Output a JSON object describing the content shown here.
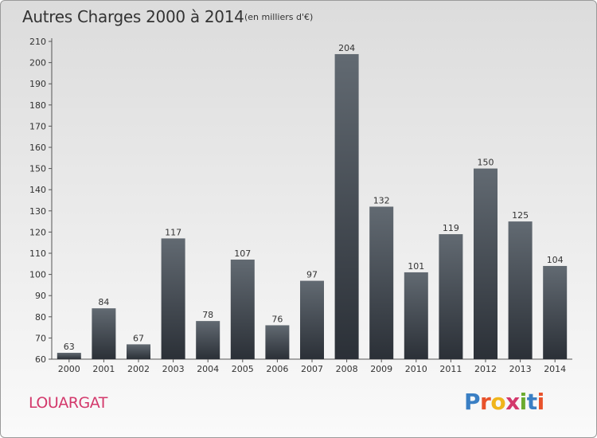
{
  "header": {
    "title": "Autres Charges 2000 à 2014",
    "unit": "(en milliers d'€)"
  },
  "footer": {
    "location": "LOUARGAT",
    "logo_text": "Proxiti"
  },
  "colors": {
    "bar_top": "#626a72",
    "bar_bottom": "#2b3037",
    "location": "#d3386b",
    "logo_letters": [
      "#3a7fc4",
      "#e8522b",
      "#f0b51c",
      "#d3386b",
      "#6cab2f",
      "#3a7fc4",
      "#e8522b"
    ]
  },
  "chart_data": {
    "type": "bar",
    "title": "Autres Charges 2000 à 2014",
    "subtitle": "(en milliers d'€)",
    "categories": [
      "2000",
      "2001",
      "2002",
      "2003",
      "2004",
      "2005",
      "2006",
      "2007",
      "2008",
      "2009",
      "2010",
      "2011",
      "2012",
      "2013",
      "2014"
    ],
    "values": [
      63,
      84,
      67,
      117,
      78,
      107,
      76,
      97,
      204,
      132,
      101,
      119,
      150,
      125,
      104
    ],
    "ylim": [
      60,
      210
    ],
    "yticks": [
      60,
      70,
      80,
      90,
      100,
      110,
      120,
      130,
      140,
      150,
      160,
      170,
      180,
      190,
      200,
      210
    ],
    "grid": false,
    "data_labels": true
  }
}
